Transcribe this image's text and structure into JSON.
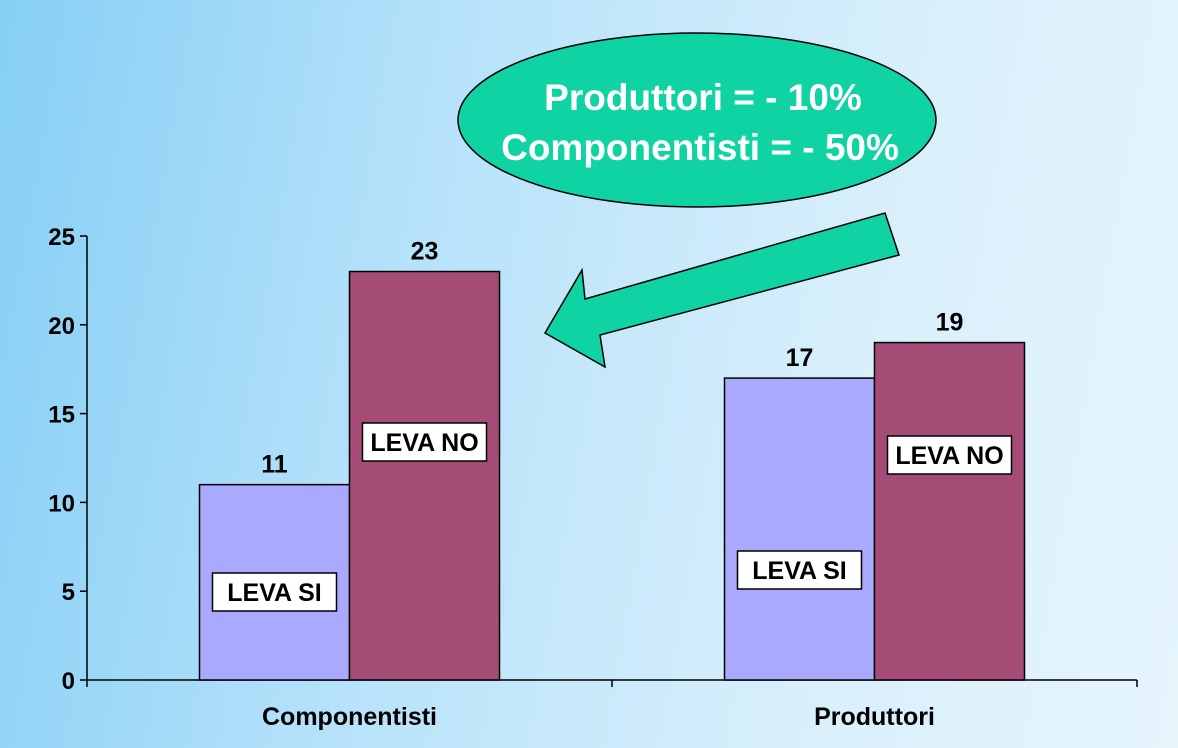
{
  "colors": {
    "leva_si": "#a9a9fd",
    "leva_no": "#a54c76",
    "callout_fill": "#0fd3a3",
    "arrow_fill": "#0fd3a3"
  },
  "callout": {
    "line1": "Produttori = - 10%",
    "line2": "Componentisti = - 50%"
  },
  "chart_data": {
    "type": "bar",
    "categories": [
      "Componentisti",
      "Produttori"
    ],
    "series": [
      {
        "name": "LEVA SI",
        "values": [
          11,
          17
        ]
      },
      {
        "name": "LEVA NO",
        "values": [
          23,
          19
        ]
      }
    ],
    "data_labels": [
      "11",
      "17",
      "23",
      "19"
    ],
    "yticks": [
      "0",
      "5",
      "10",
      "15",
      "20",
      "25"
    ],
    "ylim": [
      0,
      25
    ],
    "grid": false,
    "legend": "none"
  }
}
